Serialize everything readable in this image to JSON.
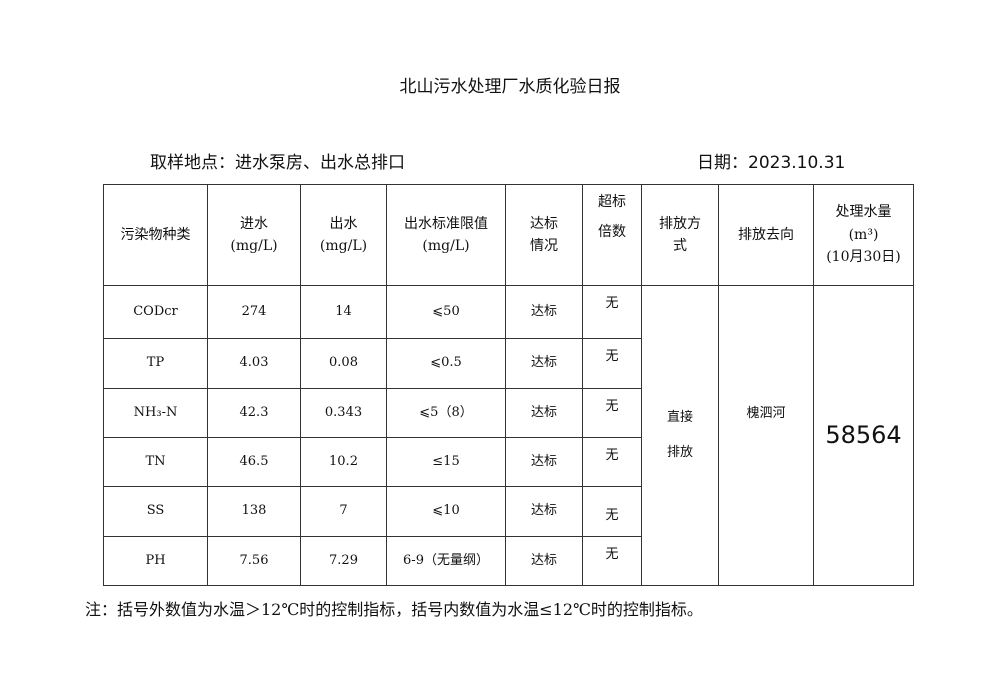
{
  "title": "北山污水处理厂水质化验日报",
  "location": "取样地点：进水泵房、出水总排口",
  "date": "日期：2023.10.31",
  "headers": {
    "type": "污染物种类",
    "inflow": "进水",
    "inflow_unit": "(mg/L)",
    "outflow": "出水",
    "outflow_unit": "(mg/L)",
    "limit": "出水标准限值",
    "limit_unit": "(mg/L)",
    "status_1": "达标",
    "status_2": "情况",
    "exceed_1": "超标",
    "exceed_2": "倍数",
    "method_1": "排放方",
    "method_2": "式",
    "dest": "排放去向",
    "vol_1": "处理水量",
    "vol_2": "(m³)",
    "vol_3": "(10月30日)"
  },
  "rows": [
    {
      "type": "CODcr",
      "in": "274",
      "out": "14",
      "limit": "⩽50",
      "status": "达标",
      "exceed": "无"
    },
    {
      "type": "TP",
      "in": "4.03",
      "out": "0.08",
      "limit": "⩽0.5",
      "status": "达标",
      "exceed": "无"
    },
    {
      "type": "NH₃-N",
      "in": "42.3",
      "out": "0.343",
      "limit": "⩽5（8）",
      "status": "达标",
      "exceed": "无"
    },
    {
      "type": "TN",
      "in": "46.5",
      "out": "10.2",
      "limit": "≤15",
      "status": "达标",
      "exceed": "无"
    },
    {
      "type": "SS",
      "in": "138",
      "out": "7",
      "limit": "⩽10",
      "status": "达标",
      "exceed": "无"
    },
    {
      "type": "PH",
      "in": "7.56",
      "out": "7.29",
      "limit": "6-9（无量纲）",
      "status": "达标",
      "exceed": "无"
    }
  ],
  "method_1": "直接",
  "method_2": "排放",
  "destination": "槐泗河",
  "volume": "58564",
  "note": "注：括号外数值为水温＞12℃时的控制指标，括号内数值为水温≤12℃时的控制指标。"
}
